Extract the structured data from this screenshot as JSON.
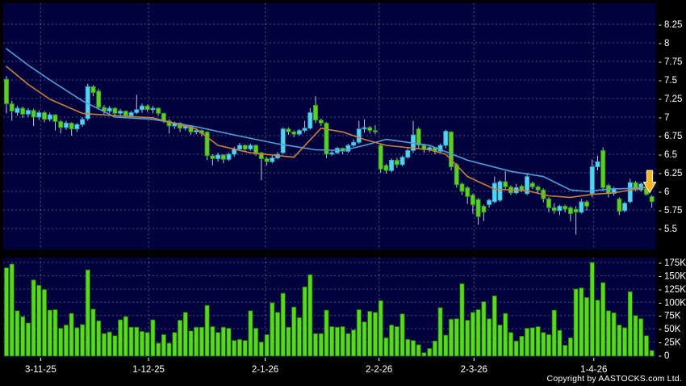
{
  "meta": {
    "copyright": "Copyright by AASTOCKS.com Ltd."
  },
  "colors": {
    "background": "#000000",
    "pane_bg": "#01013C",
    "grid": "#8C8CC0",
    "wick": "#C0C6DE",
    "up_candle": "#55D2F0",
    "up_candle_border": "#2F9FC4",
    "down_candle": "#5BCE2C",
    "down_candle_border": "#2F8F10",
    "volume_bar": "#58D81E",
    "volume_bar_border": "#236F06",
    "ma_blue": "#4E9FDE",
    "ma_orange": "#C8803C",
    "axis_text": "#FFFFFF",
    "arrow_fill": "#F5B22B",
    "arrow_border": "#FFE68C"
  },
  "chart_data": {
    "type": "candlestick",
    "panes": [
      "price",
      "volume"
    ],
    "legend_position": "none",
    "grid": "dashed",
    "price_axis": {
      "side": "right",
      "ylim": [
        5.22,
        8.53
      ],
      "tick_values": [
        8.25,
        8,
        7.75,
        7.5,
        7.25,
        7,
        6.75,
        6.5,
        6.25,
        6,
        5.75,
        5.5
      ],
      "tick_labels": [
        "8.25",
        "8",
        "7.75",
        "7.5",
        "7.25",
        "7",
        "6.75",
        "6.5",
        "6.25",
        "6",
        "5.75",
        "5.5"
      ]
    },
    "volume_axis": {
      "side": "right",
      "unit": "K",
      "max": 175,
      "tick_values": [
        175,
        150,
        125,
        100,
        75,
        50,
        25,
        0
      ],
      "tick_labels": [
        "175K",
        "150K",
        "125K",
        "100K",
        "75K",
        "50K",
        "25K",
        "0"
      ]
    },
    "x_axis": {
      "date_labels": [
        "3-11-25",
        "1-12-25",
        "2-1-26",
        "2-2-26",
        "2-3-26",
        "1-4-26"
      ],
      "tick_indexes": [
        6.3,
        26.2,
        47.7,
        68.7,
        86.2,
        108.3
      ]
    },
    "candle_fields": [
      "open",
      "high",
      "low",
      "close",
      "volume_k"
    ],
    "candles": [
      [
        7.51,
        7.55,
        7.05,
        7.18,
        165
      ],
      [
        7.18,
        7.22,
        6.95,
        7.08,
        172
      ],
      [
        7.06,
        7.15,
        7.02,
        7.12,
        84
      ],
      [
        7.12,
        7.14,
        6.99,
        7.04,
        73
      ],
      [
        7.04,
        7.12,
        7.0,
        7.09,
        61
      ],
      [
        7.09,
        7.11,
        6.88,
        7.0,
        142
      ],
      [
        7.0,
        7.09,
        6.96,
        7.06,
        132
      ],
      [
        7.06,
        7.08,
        6.93,
        6.97,
        124
      ],
      [
        6.97,
        7.06,
        6.94,
        7.03,
        85
      ],
      [
        7.03,
        7.04,
        6.82,
        6.94,
        86
      ],
      [
        6.94,
        6.96,
        6.78,
        6.86,
        51
      ],
      [
        6.86,
        6.95,
        6.83,
        6.92,
        57
      ],
      [
        6.92,
        6.93,
        6.75,
        6.84,
        79
      ],
      [
        6.84,
        6.92,
        6.8,
        6.9,
        52
      ],
      [
        6.9,
        7.0,
        6.87,
        6.97,
        58
      ],
      [
        6.98,
        7.45,
        6.95,
        7.41,
        161
      ],
      [
        7.41,
        7.43,
        7.28,
        7.33,
        87
      ],
      [
        7.35,
        7.38,
        7.1,
        7.13,
        65
      ],
      [
        7.13,
        7.16,
        7.04,
        7.08,
        41
      ],
      [
        7.08,
        7.15,
        7.05,
        7.12,
        44
      ],
      [
        7.12,
        7.13,
        7.02,
        7.05,
        37
      ],
      [
        7.05,
        7.11,
        7.01,
        7.08,
        67
      ],
      [
        7.08,
        7.09,
        6.99,
        7.02,
        73
      ],
      [
        7.02,
        7.08,
        7.0,
        7.06,
        53
      ],
      [
        7.06,
        7.3,
        7.04,
        7.1,
        53
      ],
      [
        7.1,
        7.18,
        7.06,
        7.15,
        45
      ],
      [
        7.15,
        7.17,
        7.07,
        7.1,
        43
      ],
      [
        7.1,
        7.15,
        7.05,
        7.12,
        67
      ],
      [
        7.12,
        7.13,
        7.02,
        7.05,
        23
      ],
      [
        7.05,
        7.06,
        6.92,
        6.95,
        39
      ],
      [
        6.95,
        6.97,
        6.78,
        6.88,
        23
      ],
      [
        6.88,
        6.94,
        6.84,
        6.92,
        43
      ],
      [
        6.92,
        6.93,
        6.8,
        6.85,
        66
      ],
      [
        6.85,
        6.9,
        6.82,
        6.88,
        81
      ],
      [
        6.88,
        6.89,
        6.76,
        6.8,
        46
      ],
      [
        6.8,
        6.85,
        6.77,
        6.82,
        53
      ],
      [
        6.82,
        6.83,
        6.74,
        6.78,
        53
      ],
      [
        6.8,
        6.81,
        6.42,
        6.48,
        94
      ],
      [
        6.48,
        6.5,
        6.35,
        6.44,
        54
      ],
      [
        6.44,
        6.52,
        6.4,
        6.49,
        43
      ],
      [
        6.49,
        6.5,
        6.38,
        6.43,
        53
      ],
      [
        6.43,
        6.52,
        6.41,
        6.5,
        51
      ],
      [
        6.5,
        6.6,
        6.47,
        6.57,
        28
      ],
      [
        6.57,
        6.65,
        6.54,
        6.62,
        30
      ],
      [
        6.62,
        6.63,
        6.54,
        6.57,
        28
      ],
      [
        6.57,
        6.64,
        6.55,
        6.62,
        84
      ],
      [
        6.62,
        6.63,
        6.48,
        6.52,
        51
      ],
      [
        6.52,
        6.53,
        6.15,
        6.44,
        25
      ],
      [
        6.44,
        6.46,
        6.35,
        6.4,
        39
      ],
      [
        6.4,
        6.48,
        6.38,
        6.45,
        99
      ],
      [
        6.45,
        6.53,
        6.43,
        6.5,
        81
      ],
      [
        6.52,
        6.86,
        6.5,
        6.84,
        117
      ],
      [
        6.84,
        6.86,
        6.76,
        6.8,
        53
      ],
      [
        6.8,
        6.82,
        6.73,
        6.77,
        91
      ],
      [
        6.77,
        6.84,
        6.75,
        6.82,
        71
      ],
      [
        6.82,
        6.95,
        6.79,
        6.85,
        129
      ],
      [
        6.85,
        7.12,
        6.83,
        7.06,
        152
      ],
      [
        7.16,
        7.28,
        6.92,
        6.96,
        41
      ],
      [
        6.96,
        6.98,
        6.88,
        6.92,
        41
      ],
      [
        6.92,
        6.93,
        6.45,
        6.5,
        85
      ],
      [
        6.5,
        6.56,
        6.48,
        6.52,
        54
      ],
      [
        6.52,
        6.6,
        6.5,
        6.58,
        53
      ],
      [
        6.58,
        6.59,
        6.5,
        6.54,
        54
      ],
      [
        6.54,
        6.64,
        6.52,
        6.62,
        41
      ],
      [
        6.62,
        6.7,
        6.6,
        6.66,
        48
      ],
      [
        6.66,
        6.95,
        6.64,
        6.84,
        86
      ],
      [
        6.84,
        6.97,
        6.79,
        6.86,
        63
      ],
      [
        6.86,
        6.88,
        6.78,
        6.82,
        83
      ],
      [
        6.82,
        6.89,
        6.77,
        6.8,
        81
      ],
      [
        6.62,
        6.63,
        6.25,
        6.3,
        103
      ],
      [
        6.35,
        6.37,
        6.24,
        6.28,
        33
      ],
      [
        6.28,
        6.44,
        6.26,
        6.42,
        57
      ],
      [
        6.42,
        6.45,
        6.32,
        6.36,
        54
      ],
      [
        6.36,
        6.48,
        6.34,
        6.46,
        78
      ],
      [
        6.46,
        6.58,
        6.44,
        6.55,
        30
      ],
      [
        6.55,
        6.95,
        6.52,
        6.76,
        28
      ],
      [
        6.84,
        6.86,
        6.58,
        6.62,
        20
      ],
      [
        6.62,
        6.64,
        6.52,
        6.56,
        5
      ],
      [
        6.56,
        6.62,
        6.53,
        6.59,
        13
      ],
      [
        6.59,
        6.6,
        6.5,
        6.54,
        27
      ],
      [
        6.54,
        6.64,
        6.52,
        6.62,
        90
      ],
      [
        6.62,
        6.83,
        6.58,
        6.81,
        38
      ],
      [
        6.8,
        6.81,
        6.28,
        6.33,
        68
      ],
      [
        6.36,
        6.38,
        6.05,
        6.09,
        69
      ],
      [
        6.1,
        6.12,
        5.95,
        6.0,
        135
      ],
      [
        6.05,
        6.07,
        5.83,
        5.93,
        66
      ],
      [
        5.95,
        5.97,
        5.7,
        5.82,
        81
      ],
      [
        5.89,
        5.91,
        5.55,
        5.66,
        86
      ],
      [
        5.8,
        5.82,
        5.6,
        5.72,
        101
      ],
      [
        5.82,
        5.9,
        5.78,
        5.88,
        69
      ],
      [
        5.86,
        6.2,
        5.84,
        6.11,
        112
      ],
      [
        5.88,
        6.15,
        5.86,
        6.13,
        57
      ],
      [
        6.13,
        6.27,
        6.03,
        6.06,
        79
      ],
      [
        6.06,
        6.08,
        5.95,
        5.98,
        43
      ],
      [
        5.98,
        6.1,
        5.96,
        6.05,
        27
      ],
      [
        6.07,
        6.09,
        5.99,
        6.02,
        36
      ],
      [
        5.97,
        6.25,
        5.95,
        6.2,
        51
      ],
      [
        6.11,
        6.13,
        6.03,
        6.06,
        52
      ],
      [
        6.06,
        6.08,
        5.98,
        6.02,
        54
      ],
      [
        6.02,
        6.04,
        5.85,
        5.9,
        43
      ],
      [
        5.9,
        5.92,
        5.72,
        5.78,
        39
      ],
      [
        5.78,
        5.84,
        5.7,
        5.74,
        85
      ],
      [
        5.74,
        5.82,
        5.68,
        5.8,
        47
      ],
      [
        5.8,
        5.82,
        5.72,
        5.76,
        19
      ],
      [
        5.78,
        5.8,
        5.6,
        5.7,
        33
      ],
      [
        5.76,
        5.8,
        5.42,
        5.72,
        125
      ],
      [
        5.72,
        5.9,
        5.7,
        5.86,
        127
      ],
      [
        5.86,
        5.88,
        5.74,
        5.8,
        109
      ],
      [
        5.97,
        6.43,
        5.92,
        6.33,
        175
      ],
      [
        6.33,
        6.48,
        6.28,
        6.4,
        104
      ],
      [
        6.55,
        6.59,
        6.0,
        6.05,
        137
      ],
      [
        6.08,
        6.1,
        5.92,
        5.97,
        84
      ],
      [
        5.97,
        6.06,
        5.94,
        6.04,
        80
      ],
      [
        5.9,
        5.92,
        5.68,
        5.73,
        57
      ],
      [
        5.74,
        5.86,
        5.72,
        5.84,
        52
      ],
      [
        5.86,
        6.17,
        5.84,
        6.12,
        120
      ],
      [
        6.12,
        6.14,
        6.0,
        6.02,
        75
      ],
      [
        6.02,
        6.12,
        6.0,
        6.1,
        69
      ],
      [
        6.04,
        6.06,
        5.94,
        5.96,
        37
      ],
      [
        5.93,
        5.95,
        5.78,
        5.86,
        9
      ]
    ],
    "ma_lines": [
      {
        "name": "ma-blue",
        "color_key": "ma_blue",
        "points": [
          [
            0,
            7.92
          ],
          [
            4,
            7.7
          ],
          [
            8,
            7.5
          ],
          [
            14,
            7.22
          ],
          [
            20,
            7.0
          ],
          [
            27,
            6.97
          ],
          [
            35,
            6.87
          ],
          [
            42,
            6.76
          ],
          [
            50,
            6.64
          ],
          [
            57,
            6.56
          ],
          [
            62,
            6.55
          ],
          [
            66,
            6.62
          ],
          [
            70,
            6.7
          ],
          [
            78,
            6.62
          ],
          [
            85,
            6.42
          ],
          [
            93,
            6.27
          ],
          [
            99,
            6.2
          ],
          [
            104,
            6.02
          ],
          [
            107,
            6.0
          ],
          [
            111,
            6.03
          ],
          [
            115,
            6.04
          ],
          [
            119,
            6.06
          ]
        ]
      },
      {
        "name": "ma-orange",
        "color_key": "ma_orange",
        "points": [
          [
            0,
            7.68
          ],
          [
            4,
            7.44
          ],
          [
            8,
            7.24
          ],
          [
            14,
            7.05
          ],
          [
            20,
            7.02
          ],
          [
            27,
            6.99
          ],
          [
            35,
            6.84
          ],
          [
            39,
            6.62
          ],
          [
            45,
            6.52
          ],
          [
            53,
            6.46
          ],
          [
            58,
            6.85
          ],
          [
            62,
            6.8
          ],
          [
            66,
            6.7
          ],
          [
            70,
            6.62
          ],
          [
            78,
            6.56
          ],
          [
            81,
            6.5
          ],
          [
            85,
            6.2
          ],
          [
            90,
            6.03
          ],
          [
            96,
            6.01
          ],
          [
            100,
            5.94
          ],
          [
            104,
            5.92
          ],
          [
            108,
            5.96
          ],
          [
            112,
            5.98
          ],
          [
            116,
            6.03
          ],
          [
            119,
            6.08
          ]
        ]
      }
    ],
    "annotation": {
      "type": "down-arrow",
      "x_index": 118.6,
      "top_price": 6.28,
      "tip_price": 5.98
    }
  }
}
